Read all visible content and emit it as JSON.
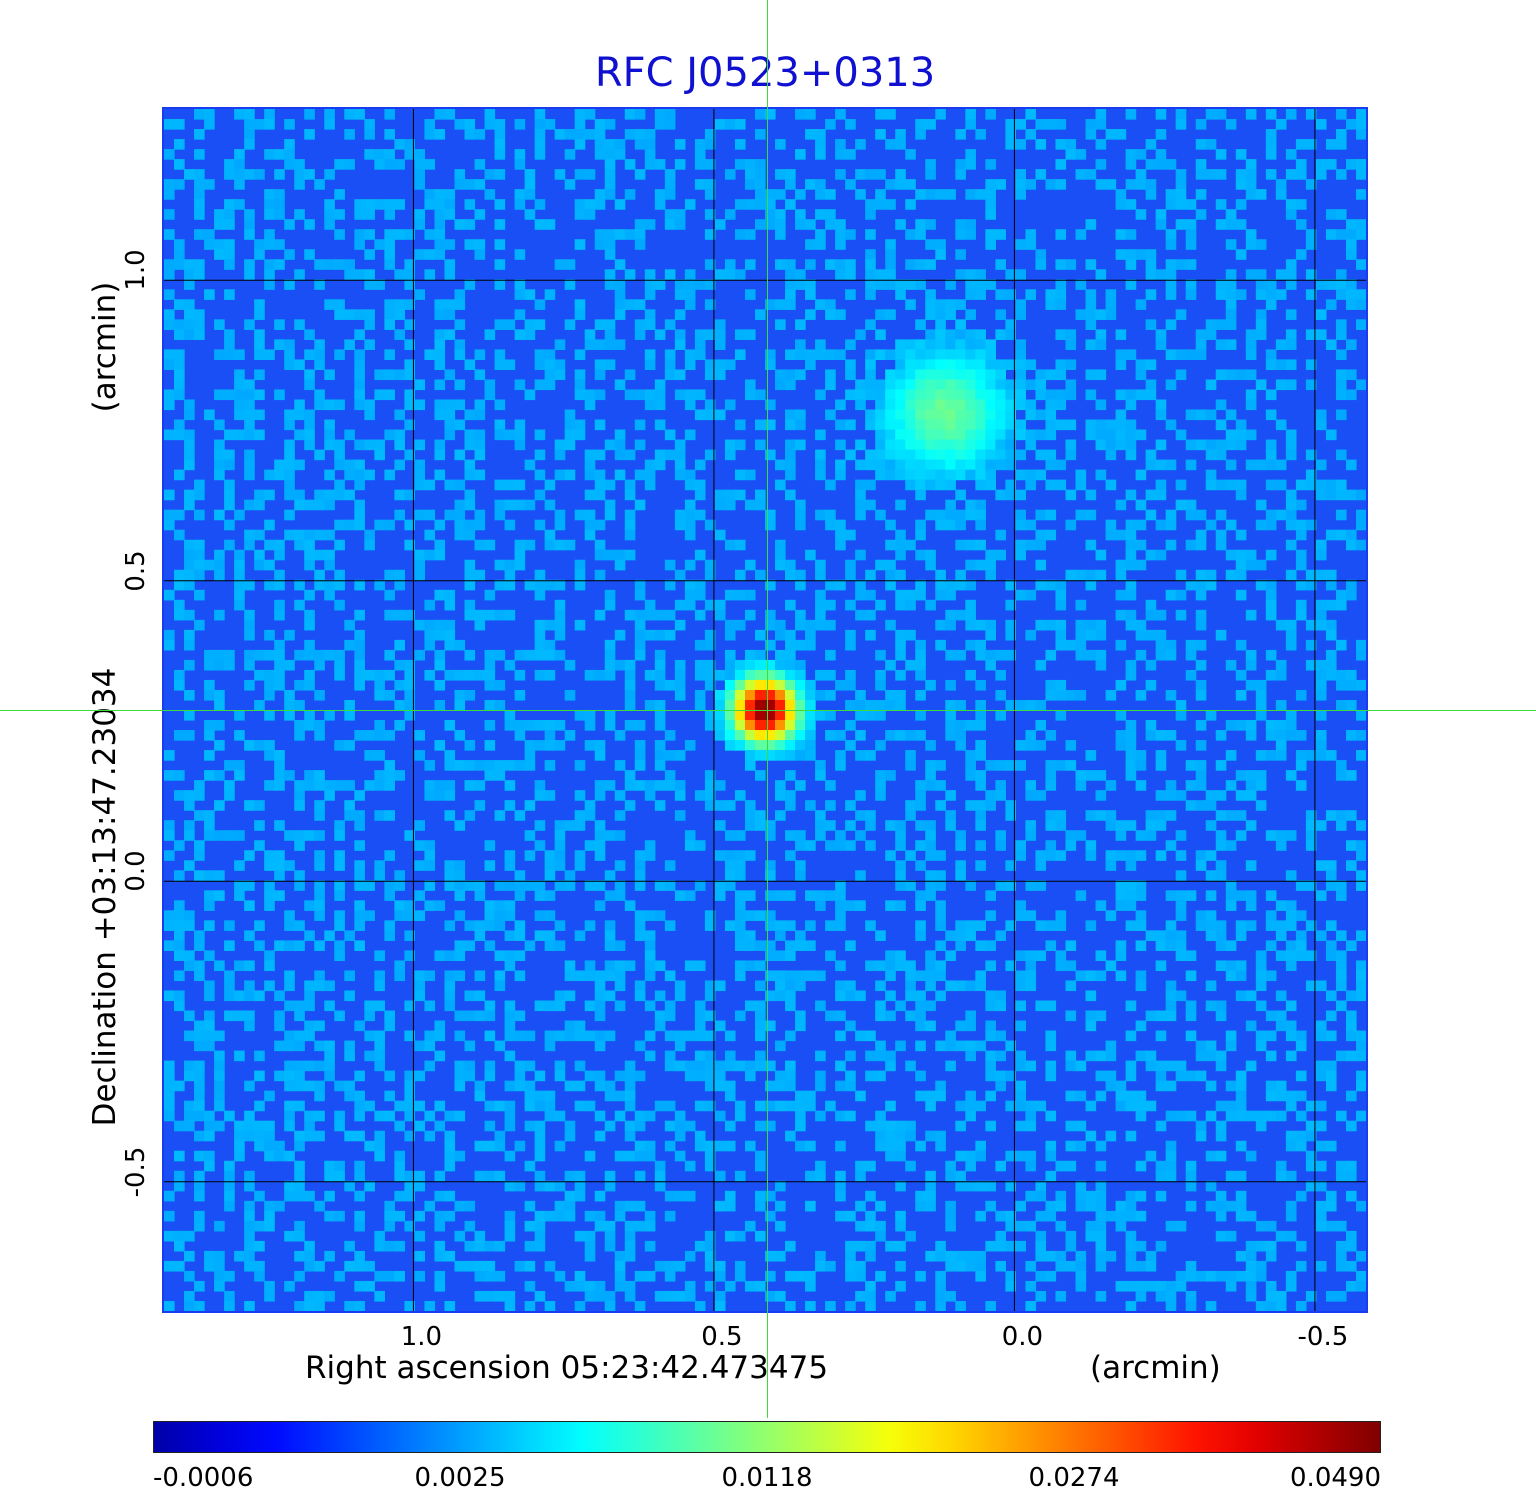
{
  "chart_data": {
    "type": "heatmap",
    "title": "RFC J0523+0313",
    "xlabel": "Right ascension  05:23:42.473475",
    "x_unit": "(arcmin)",
    "ylabel": "Declination  +03:13:47.23034",
    "y_unit": "(arcmin)",
    "x_ticks": [
      1.0,
      0.5,
      0.0,
      -0.5
    ],
    "x_tick_labels": [
      "1.0",
      "0.5",
      "0.0",
      "-0.5"
    ],
    "y_ticks": [
      1.0,
      0.5,
      0.0,
      -0.5
    ],
    "y_tick_labels": [
      "1.0",
      "0.5",
      "0.0",
      "-0.5"
    ],
    "xlim": [
      1.415,
      -0.585
    ],
    "ylim": [
      -0.715,
      1.285
    ],
    "x_reversed": true,
    "grid": true,
    "colormap": "jet",
    "colorbar_ticks": [
      "-0.0006",
      "0.0025",
      "0.0118",
      "0.0274",
      "0.0490"
    ],
    "colorbar_range": [
      -0.0006,
      0.049
    ],
    "sources": [
      {
        "x": 0.415,
        "y": 0.285,
        "peak": 0.049,
        "sigma_arcmin": 0.028
      },
      {
        "x": 0.115,
        "y": 0.78,
        "peak": 0.006,
        "sigma_arcmin": 0.055
      }
    ],
    "crosshair": {
      "x": 0.415,
      "y": 0.285,
      "color": "#3bdc3b"
    },
    "background_color": "#1a4ff5"
  }
}
